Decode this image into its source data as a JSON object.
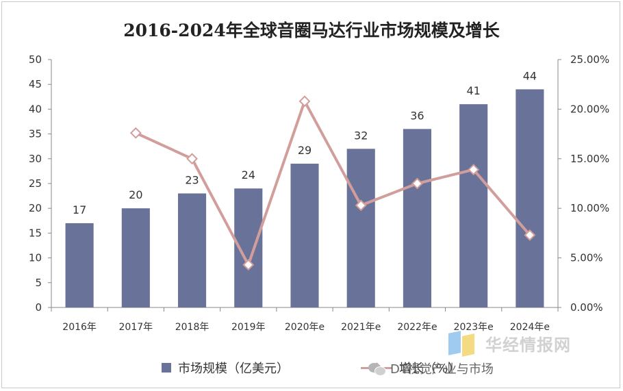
{
  "chart_data": {
    "type": "bar",
    "title": "2016-2024年全球音圈马达行业市场规模及增长",
    "categories": [
      "2016年",
      "2017年",
      "2018年",
      "2019年",
      "2020年e",
      "2021年e",
      "2022年e",
      "2023年e",
      "2024年e"
    ],
    "series": [
      {
        "name": "市场规模（亿美元）",
        "type": "bar",
        "axis": "left",
        "color": "#69739a",
        "values": [
          17,
          20,
          23,
          24,
          29,
          32,
          36,
          41,
          44
        ],
        "labels": [
          "17",
          "20",
          "23",
          "24",
          "29",
          "32",
          "36",
          "41",
          "44"
        ]
      },
      {
        "name": "增长（%）",
        "type": "line",
        "axis": "right",
        "color": "#d19e9c",
        "values": [
          null,
          17.6,
          15.0,
          4.3,
          20.8,
          10.3,
          12.5,
          13.9,
          7.3
        ]
      }
    ],
    "ylim": [
      0,
      50
    ],
    "yticks": [
      "0",
      "5",
      "10",
      "15",
      "20",
      "25",
      "30",
      "35",
      "40",
      "45",
      "50"
    ],
    "y2lim": [
      0,
      25
    ],
    "y2ticks": [
      "0.00%",
      "5.00%",
      "10.00%",
      "15.00%",
      "20.00%",
      "25.00%"
    ],
    "grid": false,
    "legend": "bottom"
  },
  "legend": {
    "bar_label": "市场规模（亿美元）",
    "line_label": "增长（%）"
  },
  "watermark": {
    "brand": "华经情报网",
    "wechat": "DT视觉产业与市场"
  }
}
